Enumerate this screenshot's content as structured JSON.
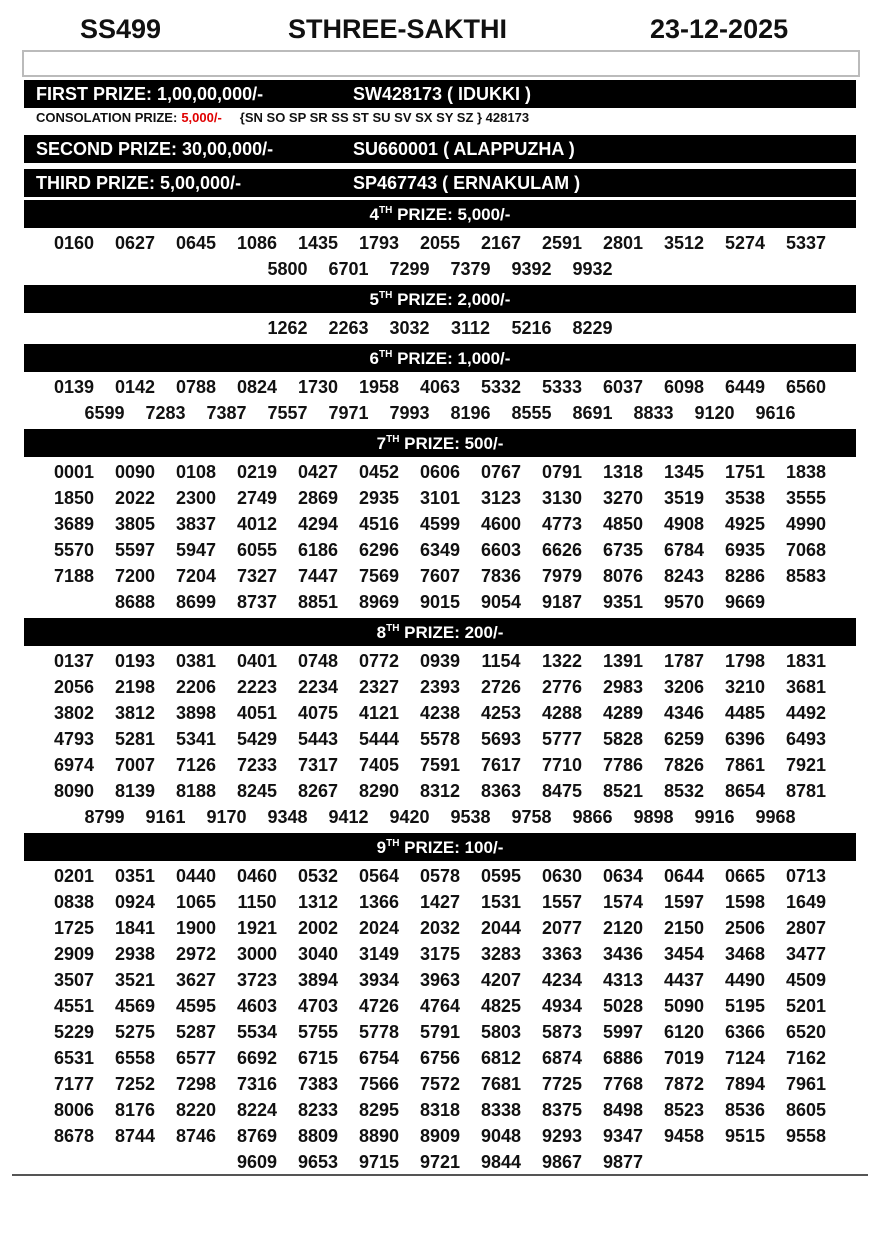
{
  "header": {
    "code": "SS499",
    "name": "STHREE-SAKTHI",
    "date": "23-12-2025"
  },
  "first_prize": {
    "label": "FIRST PRIZE: 1,00,00,000/-",
    "winner": "SW428173 ( IDUKKI )"
  },
  "consolation": {
    "label": "CONSOLATION PRIZE:",
    "amount": "5,000/-",
    "series": "{SN SO SP SR SS ST SU SV SX SY SZ } 428173",
    "amount_color": "#e00000"
  },
  "second_prize": {
    "label": "SECOND PRIZE: 30,00,000/-",
    "winner": "SU660001 ( ALAPPUZHA )"
  },
  "third_prize": {
    "label": "THIRD PRIZE: 5,00,000/-",
    "winner": "SP467743 ( ERNAKULAM )"
  },
  "prizes": [
    {
      "ord": "4",
      "sup": "TH",
      "label": " PRIZE: 5,000/-",
      "rows": [
        [
          "0160",
          "0627",
          "0645",
          "1086",
          "1435",
          "1793",
          "2055",
          "2167",
          "2591",
          "2801",
          "3512",
          "5274",
          "5337"
        ],
        [
          "5800",
          "6701",
          "7299",
          "7379",
          "9392",
          "9932"
        ]
      ]
    },
    {
      "ord": "5",
      "sup": "TH",
      "label": " PRIZE: 2,000/-",
      "rows": [
        [
          "1262",
          "2263",
          "3032",
          "3112",
          "5216",
          "8229"
        ]
      ]
    },
    {
      "ord": "6",
      "sup": "TH",
      "label": " PRIZE: 1,000/-",
      "rows": [
        [
          "0139",
          "0142",
          "0788",
          "0824",
          "1730",
          "1958",
          "4063",
          "5332",
          "5333",
          "6037",
          "6098",
          "6449",
          "6560"
        ],
        [
          "6599",
          "7283",
          "7387",
          "7557",
          "7971",
          "7993",
          "8196",
          "8555",
          "8691",
          "8833",
          "9120",
          "9616"
        ]
      ]
    },
    {
      "ord": "7",
      "sup": "TH",
      "label": " PRIZE: 500/-",
      "rows": [
        [
          "0001",
          "0090",
          "0108",
          "0219",
          "0427",
          "0452",
          "0606",
          "0767",
          "0791",
          "1318",
          "1345",
          "1751",
          "1838"
        ],
        [
          "1850",
          "2022",
          "2300",
          "2749",
          "2869",
          "2935",
          "3101",
          "3123",
          "3130",
          "3270",
          "3519",
          "3538",
          "3555"
        ],
        [
          "3689",
          "3805",
          "3837",
          "4012",
          "4294",
          "4516",
          "4599",
          "4600",
          "4773",
          "4850",
          "4908",
          "4925",
          "4990"
        ],
        [
          "5570",
          "5597",
          "5947",
          "6055",
          "6186",
          "6296",
          "6349",
          "6603",
          "6626",
          "6735",
          "6784",
          "6935",
          "7068"
        ],
        [
          "7188",
          "7200",
          "7204",
          "7327",
          "7447",
          "7569",
          "7607",
          "7836",
          "7979",
          "8076",
          "8243",
          "8286",
          "8583"
        ],
        [
          "8688",
          "8699",
          "8737",
          "8851",
          "8969",
          "9015",
          "9054",
          "9187",
          "9351",
          "9570",
          "9669"
        ]
      ]
    },
    {
      "ord": "8",
      "sup": "TH",
      "label": " PRIZE: 200/-",
      "rows": [
        [
          "0137",
          "0193",
          "0381",
          "0401",
          "0748",
          "0772",
          "0939",
          "1154",
          "1322",
          "1391",
          "1787",
          "1798",
          "1831"
        ],
        [
          "2056",
          "2198",
          "2206",
          "2223",
          "2234",
          "2327",
          "2393",
          "2726",
          "2776",
          "2983",
          "3206",
          "3210",
          "3681"
        ],
        [
          "3802",
          "3812",
          "3898",
          "4051",
          "4075",
          "4121",
          "4238",
          "4253",
          "4288",
          "4289",
          "4346",
          "4485",
          "4492"
        ],
        [
          "4793",
          "5281",
          "5341",
          "5429",
          "5443",
          "5444",
          "5578",
          "5693",
          "5777",
          "5828",
          "6259",
          "6396",
          "6493"
        ],
        [
          "6974",
          "7007",
          "7126",
          "7233",
          "7317",
          "7405",
          "7591",
          "7617",
          "7710",
          "7786",
          "7826",
          "7861",
          "7921"
        ],
        [
          "8090",
          "8139",
          "8188",
          "8245",
          "8267",
          "8290",
          "8312",
          "8363",
          "8475",
          "8521",
          "8532",
          "8654",
          "8781"
        ],
        [
          "8799",
          "9161",
          "9170",
          "9348",
          "9412",
          "9420",
          "9538",
          "9758",
          "9866",
          "9898",
          "9916",
          "9968"
        ]
      ]
    },
    {
      "ord": "9",
      "sup": "TH",
      "label": " PRIZE: 100/-",
      "rows": [
        [
          "0201",
          "0351",
          "0440",
          "0460",
          "0532",
          "0564",
          "0578",
          "0595",
          "0630",
          "0634",
          "0644",
          "0665",
          "0713"
        ],
        [
          "0838",
          "0924",
          "1065",
          "1150",
          "1312",
          "1366",
          "1427",
          "1531",
          "1557",
          "1574",
          "1597",
          "1598",
          "1649"
        ],
        [
          "1725",
          "1841",
          "1900",
          "1921",
          "2002",
          "2024",
          "2032",
          "2044",
          "2077",
          "2120",
          "2150",
          "2506",
          "2807"
        ],
        [
          "2909",
          "2938",
          "2972",
          "3000",
          "3040",
          "3149",
          "3175",
          "3283",
          "3363",
          "3436",
          "3454",
          "3468",
          "3477"
        ],
        [
          "3507",
          "3521",
          "3627",
          "3723",
          "3894",
          "3934",
          "3963",
          "4207",
          "4234",
          "4313",
          "4437",
          "4490",
          "4509"
        ],
        [
          "4551",
          "4569",
          "4595",
          "4603",
          "4703",
          "4726",
          "4764",
          "4825",
          "4934",
          "5028",
          "5090",
          "5195",
          "5201"
        ],
        [
          "5229",
          "5275",
          "5287",
          "5534",
          "5755",
          "5778",
          "5791",
          "5803",
          "5873",
          "5997",
          "6120",
          "6366",
          "6520"
        ],
        [
          "6531",
          "6558",
          "6577",
          "6692",
          "6715",
          "6754",
          "6756",
          "6812",
          "6874",
          "6886",
          "7019",
          "7124",
          "7162"
        ],
        [
          "7177",
          "7252",
          "7298",
          "7316",
          "7383",
          "7566",
          "7572",
          "7681",
          "7725",
          "7768",
          "7872",
          "7894",
          "7961"
        ],
        [
          "8006",
          "8176",
          "8220",
          "8224",
          "8233",
          "8295",
          "8318",
          "8338",
          "8375",
          "8498",
          "8523",
          "8536",
          "8605"
        ],
        [
          "8678",
          "8744",
          "8746",
          "8769",
          "8809",
          "8890",
          "8909",
          "9048",
          "9293",
          "9347",
          "9458",
          "9515",
          "9558"
        ],
        [
          "9609",
          "9653",
          "9715",
          "9721",
          "9844",
          "9867",
          "9877"
        ]
      ]
    }
  ]
}
